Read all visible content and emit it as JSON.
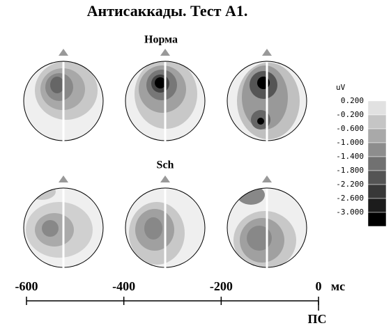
{
  "title": "Антисаккады. Тест А1.",
  "panels": [
    {
      "label": "Норма"
    },
    {
      "label": "Sch"
    }
  ],
  "color_scale": {
    "unit": "uV",
    "ticks": [
      {
        "value": 0.2,
        "label": "0.200"
      },
      {
        "value": -0.2,
        "label": "-0.200"
      },
      {
        "value": -0.6,
        "label": "-0.600"
      },
      {
        "value": -1.0,
        "label": "-1.000"
      },
      {
        "value": -1.4,
        "label": "-1.400"
      },
      {
        "value": -1.8,
        "label": "-1.800"
      },
      {
        "value": -2.2,
        "label": "-2.200"
      },
      {
        "value": -2.6,
        "label": "-2.600"
      },
      {
        "value": -3.0,
        "label": "-3.000"
      }
    ]
  },
  "time_axis": {
    "xlim": [
      -600,
      0
    ],
    "ticks": [
      -600,
      -400,
      -200,
      0
    ],
    "unit": "мс",
    "event": "ПС"
  }
}
